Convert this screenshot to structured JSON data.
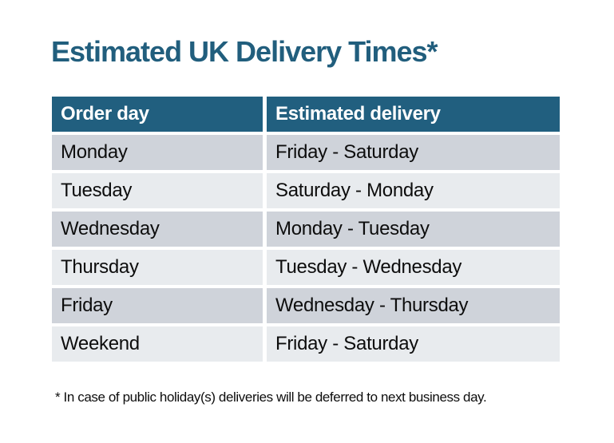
{
  "page": {
    "title": "Estimated UK Delivery Times*",
    "footnote": "* In case of public holiday(s) deliveries will be deferred to next business day."
  },
  "colors": {
    "page_bg": "#ffffff",
    "title_color": "#215e7d",
    "header_bg": "#215f7f",
    "header_text": "#ffffff",
    "row_odd_bg": "#cfd3da",
    "row_even_bg": "#e8ebee",
    "cell_text": "#0d0d0d"
  },
  "table": {
    "columns": [
      {
        "label": "Order day"
      },
      {
        "label": "Estimated delivery"
      }
    ],
    "rows": [
      {
        "order_day": "Monday",
        "estimated_delivery": "Friday - Saturday"
      },
      {
        "order_day": "Tuesday",
        "estimated_delivery": "Saturday - Monday"
      },
      {
        "order_day": "Wednesday",
        "estimated_delivery": "Monday - Tuesday"
      },
      {
        "order_day": "Thursday",
        "estimated_delivery": "Tuesday - Wednesday"
      },
      {
        "order_day": "Friday",
        "estimated_delivery": "Wednesday - Thursday"
      },
      {
        "order_day": "Weekend",
        "estimated_delivery": "Friday - Saturday"
      }
    ]
  },
  "chart_data": {
    "type": "table",
    "title": "Estimated UK Delivery Times*",
    "columns": [
      "Order day",
      "Estimated delivery"
    ],
    "rows": [
      [
        "Monday",
        "Friday - Saturday"
      ],
      [
        "Tuesday",
        "Saturday - Monday"
      ],
      [
        "Wednesday",
        "Monday - Tuesday"
      ],
      [
        "Thursday",
        "Tuesday - Wednesday"
      ],
      [
        "Friday",
        "Wednesday - Thursday"
      ],
      [
        "Weekend",
        "Friday - Saturday"
      ]
    ],
    "footnote": "* In case of public holiday(s) deliveries will be deferred to next business day."
  }
}
